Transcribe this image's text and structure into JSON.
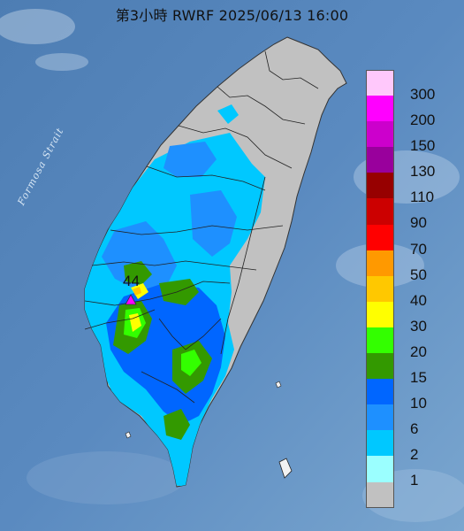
{
  "title": "第3小時  RWRF 2025/06/13 16:00",
  "strait_label": "Formosa Strait",
  "max_value": "44",
  "legend": [
    {
      "label": "300",
      "color": "#ffc8fb"
    },
    {
      "label": "200",
      "color": "#ff00ff"
    },
    {
      "label": "150",
      "color": "#cc00cc"
    },
    {
      "label": "130",
      "color": "#99009c"
    },
    {
      "label": "110",
      "color": "#970000"
    },
    {
      "label": "90",
      "color": "#cc0000"
    },
    {
      "label": "70",
      "color": "#ff0000"
    },
    {
      "label": "50",
      "color": "#ff9900"
    },
    {
      "label": "40",
      "color": "#ffc800"
    },
    {
      "label": "30",
      "color": "#ffff00"
    },
    {
      "label": "20",
      "color": "#33ff00"
    },
    {
      "label": "15",
      "color": "#339900"
    },
    {
      "label": "10",
      "color": "#0066ff"
    },
    {
      "label": "6",
      "color": "#1e90ff"
    },
    {
      "label": "2",
      "color": "#00c8ff"
    },
    {
      "label": "1",
      "color": "#9bffff"
    },
    {
      "label": "",
      "color": "#c1c1c1"
    }
  ]
}
